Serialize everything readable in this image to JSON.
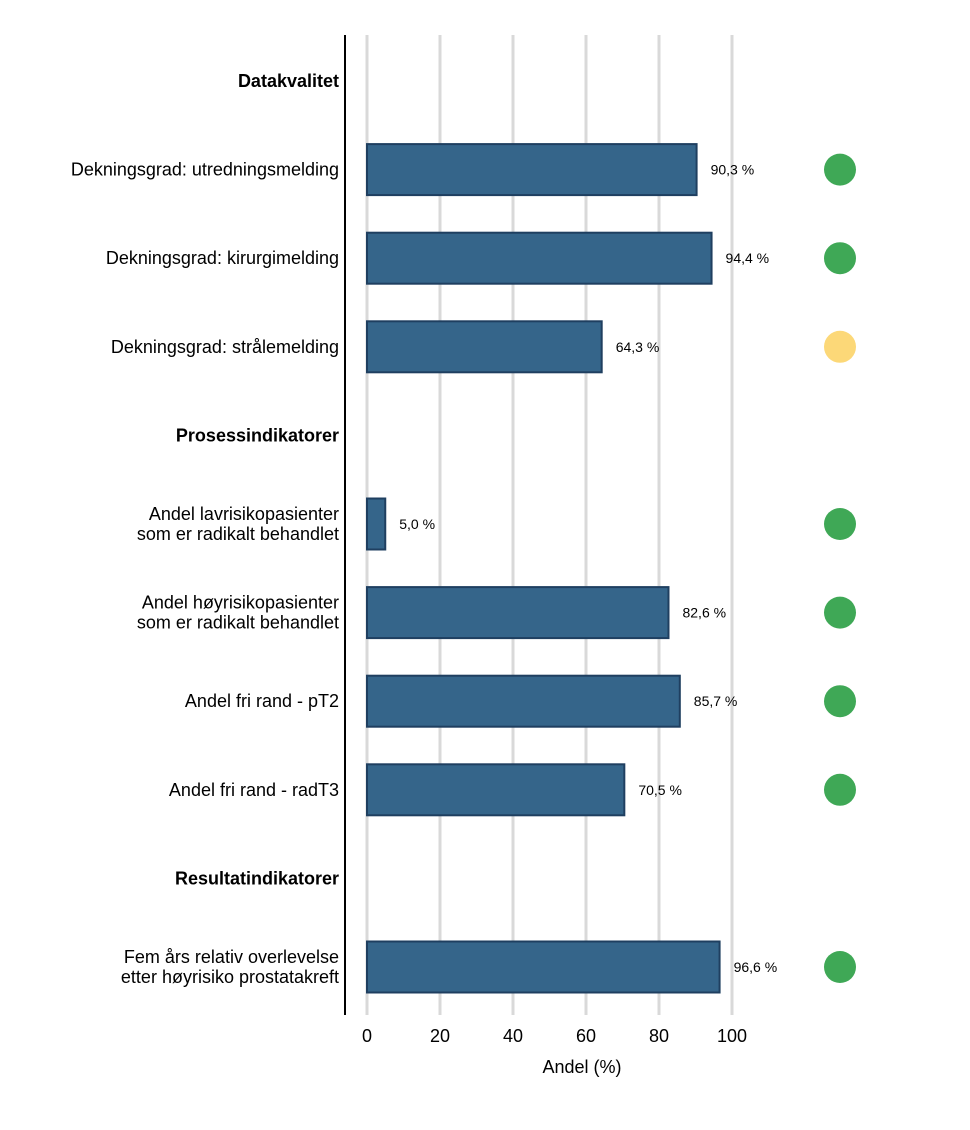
{
  "chart_data": {
    "type": "bar",
    "orientation": "horizontal",
    "xlabel": "Andel (%)",
    "xlim": [
      0,
      100
    ],
    "x_ticks": [
      "0",
      "20",
      "40",
      "60",
      "80",
      "100"
    ],
    "grid": "vertical",
    "bar_color": "#35658a",
    "status_colors": {
      "green": "#3fa856",
      "yellow": "#fcd878"
    },
    "rows": [
      {
        "kind": "section",
        "label": "Datakvalitet"
      },
      {
        "kind": "bar",
        "label": [
          "Dekningsgrad: utredningsmelding"
        ],
        "value": 90.3,
        "value_label": "90,3 %",
        "status": "green"
      },
      {
        "kind": "bar",
        "label": [
          "Dekningsgrad: kirurgimelding"
        ],
        "value": 94.4,
        "value_label": "94,4 %",
        "status": "green"
      },
      {
        "kind": "bar",
        "label": [
          "Dekningsgrad: strålemelding"
        ],
        "value": 64.3,
        "value_label": "64,3 %",
        "status": "yellow"
      },
      {
        "kind": "section",
        "label": "Prosessindikatorer"
      },
      {
        "kind": "bar",
        "label": [
          "Andel lavrisikopasienter",
          "som er radikalt behandlet"
        ],
        "value": 5.0,
        "value_label": "5,0 %",
        "status": "green"
      },
      {
        "kind": "bar",
        "label": [
          "Andel høyrisikopasienter",
          "som er radikalt behandlet"
        ],
        "value": 82.6,
        "value_label": "82,6 %",
        "status": "green"
      },
      {
        "kind": "bar",
        "label": [
          "Andel fri rand - pT2"
        ],
        "value": 85.7,
        "value_label": "85,7 %",
        "status": "green"
      },
      {
        "kind": "bar",
        "label": [
          "Andel fri rand - radT3"
        ],
        "value": 70.5,
        "value_label": "70,5 %",
        "status": "green"
      },
      {
        "kind": "section",
        "label": "Resultatindikatorer"
      },
      {
        "kind": "bar",
        "label": [
          "Fem års relativ overlevelse",
          "etter høyrisiko prostatakreft"
        ],
        "value": 96.6,
        "value_label": "96,6 %",
        "status": "green"
      }
    ]
  }
}
